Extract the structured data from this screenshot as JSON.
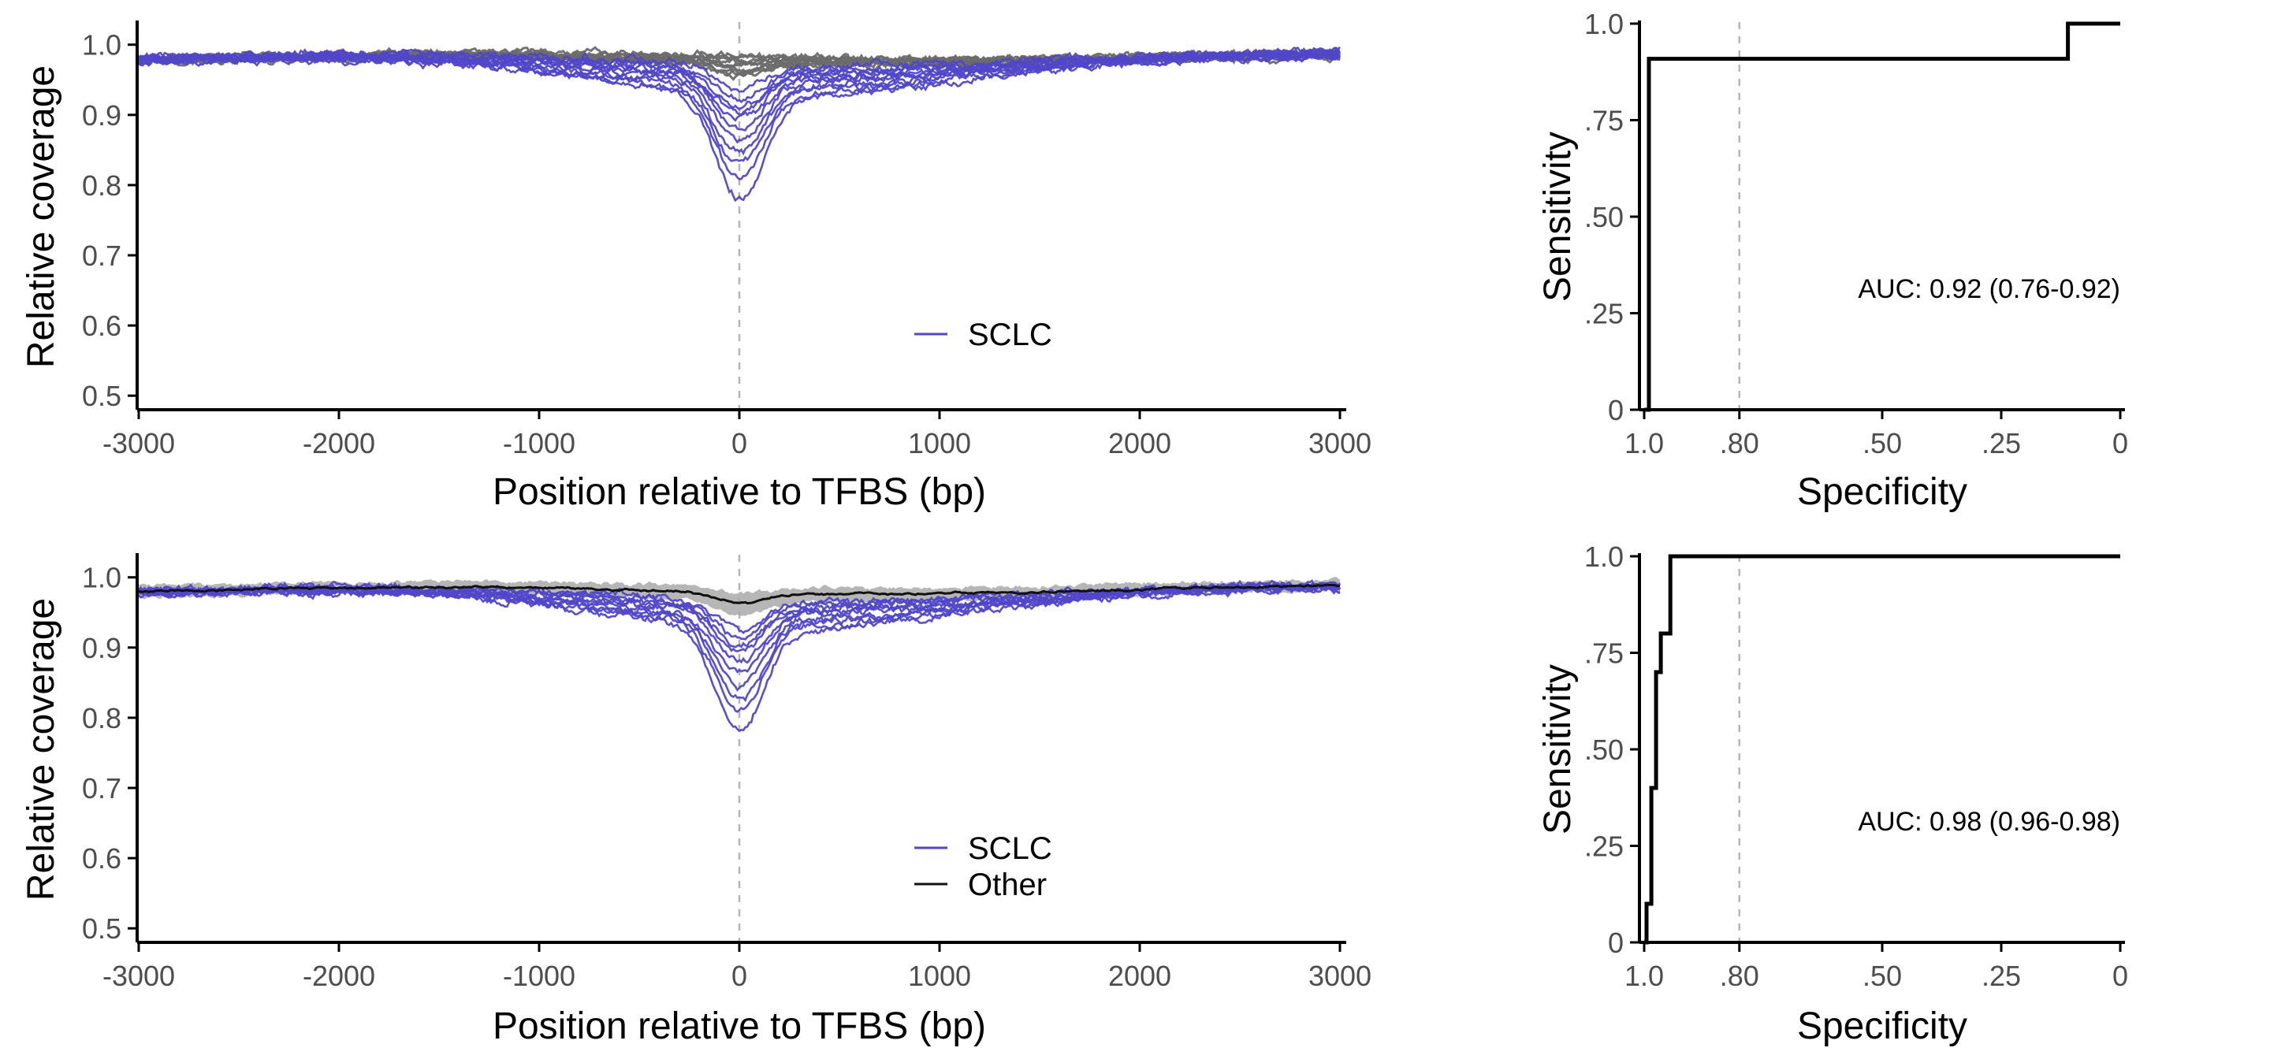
{
  "colors": {
    "sclc": "#5147c9",
    "other_band": "#a9a9a9",
    "other_lines": "#6b6b6b",
    "other_mean": "#111111",
    "axis": "#000000",
    "refline": "#b5b5b5"
  },
  "chart_data": [
    {
      "id": "coverage-top",
      "type": "line",
      "xlabel": "Position relative to TFBS (bp)",
      "ylabel": "Relative coverage",
      "xlim": [
        -3000,
        3000
      ],
      "ylim": [
        0.48,
        1.03
      ],
      "xticks": [
        -3000,
        -2000,
        -1000,
        0,
        1000,
        2000,
        3000
      ],
      "xtick_labels": [
        "-3000",
        "-2000",
        "-1000",
        "0",
        "1000",
        "2000",
        "3000"
      ],
      "yticks": [
        0.5,
        0.6,
        0.7,
        0.8,
        0.9,
        1.0
      ],
      "ytick_labels": [
        "0.5",
        "0.6",
        "0.7",
        "0.8",
        "0.9",
        "1.0"
      ],
      "vline_x": 0,
      "legend": [
        {
          "label": "SCLC",
          "color": "sclc"
        }
      ],
      "legend_position": "bottom-center",
      "other_display": "lines",
      "series": [
        {
          "group": "Other",
          "center_min": 0.985,
          "baseline": 0.985
        },
        {
          "group": "Other",
          "center_min": 0.982,
          "baseline": 0.983
        },
        {
          "group": "Other",
          "center_min": 0.978,
          "baseline": 0.984
        },
        {
          "group": "Other",
          "center_min": 0.975,
          "baseline": 0.981
        },
        {
          "group": "Other",
          "center_min": 0.972,
          "baseline": 0.982
        },
        {
          "group": "Other",
          "center_min": 0.968,
          "baseline": 0.979
        },
        {
          "group": "Other",
          "center_min": 0.965,
          "baseline": 0.983
        },
        {
          "group": "Other",
          "center_min": 0.962,
          "baseline": 0.98
        },
        {
          "group": "Other",
          "center_min": 0.958,
          "baseline": 0.982
        },
        {
          "group": "Other",
          "center_min": 0.955,
          "baseline": 0.978
        },
        {
          "group": "SCLC",
          "center_min": 0.77,
          "baseline": 0.985
        },
        {
          "group": "SCLC",
          "center_min": 0.8,
          "baseline": 0.982
        },
        {
          "group": "SCLC",
          "center_min": 0.82,
          "baseline": 0.984
        },
        {
          "group": "SCLC",
          "center_min": 0.84,
          "baseline": 0.98
        },
        {
          "group": "SCLC",
          "center_min": 0.86,
          "baseline": 0.983
        },
        {
          "group": "SCLC",
          "center_min": 0.875,
          "baseline": 0.981
        },
        {
          "group": "SCLC",
          "center_min": 0.89,
          "baseline": 0.986
        },
        {
          "group": "SCLC",
          "center_min": 0.9,
          "baseline": 0.979
        },
        {
          "group": "SCLC",
          "center_min": 0.91,
          "baseline": 0.984
        },
        {
          "group": "SCLC",
          "center_min": 0.92,
          "baseline": 0.982
        },
        {
          "group": "SCLC",
          "center_min": 0.935,
          "baseline": 0.985
        }
      ]
    },
    {
      "id": "roc-top",
      "type": "line",
      "xlabel": "Specificity",
      "ylabel": "Sensitivity",
      "xlim": [
        1.0,
        0
      ],
      "ylim": [
        0,
        1.0
      ],
      "xticks": [
        1.0,
        0.8,
        0.5,
        0.25,
        0
      ],
      "xtick_labels": [
        "1.0",
        ".80",
        ".50",
        ".25",
        "0"
      ],
      "yticks": [
        0,
        0.25,
        0.5,
        0.75,
        1.0
      ],
      "ytick_labels": [
        "0",
        ".25",
        ".50",
        ".75",
        "1.0"
      ],
      "vline_x": 0.8,
      "annotation": "AUC: 0.92 (0.76-0.92)",
      "specificity": [
        1.0,
        0.99,
        0.99,
        0.11,
        0.11,
        0
      ],
      "sensitivity": [
        0,
        0,
        0.909,
        0.909,
        1.0,
        1.0
      ]
    },
    {
      "id": "coverage-bottom",
      "type": "line",
      "xlabel": "Position relative to TFBS (bp)",
      "ylabel": "Relative coverage",
      "xlim": [
        -3000,
        3000
      ],
      "ylim": [
        0.48,
        1.03
      ],
      "xticks": [
        -3000,
        -2000,
        -1000,
        0,
        1000,
        2000,
        3000
      ],
      "xtick_labels": [
        "-3000",
        "-2000",
        "-1000",
        "0",
        "1000",
        "2000",
        "3000"
      ],
      "yticks": [
        0.5,
        0.6,
        0.7,
        0.8,
        0.9,
        1.0
      ],
      "ytick_labels": [
        "0.5",
        "0.6",
        "0.7",
        "0.8",
        "0.9",
        "1.0"
      ],
      "vline_x": 0,
      "legend": [
        {
          "label": "SCLC",
          "color": "sclc"
        },
        {
          "label": "Other",
          "color": "other_mean"
        }
      ],
      "legend_position": "bottom-center",
      "other_display": "band",
      "other_mean": {
        "center_min": 0.963,
        "baseline": 0.984
      },
      "other_band": {
        "lower_center": 0.945,
        "upper_center": 0.975,
        "lower_base": 0.976,
        "upper_base": 0.992
      },
      "series": [
        {
          "group": "SCLC",
          "center_min": 0.77,
          "baseline": 0.985
        },
        {
          "group": "SCLC",
          "center_min": 0.8,
          "baseline": 0.982
        },
        {
          "group": "SCLC",
          "center_min": 0.82,
          "baseline": 0.984
        },
        {
          "group": "SCLC",
          "center_min": 0.84,
          "baseline": 0.98
        },
        {
          "group": "SCLC",
          "center_min": 0.86,
          "baseline": 0.983
        },
        {
          "group": "SCLC",
          "center_min": 0.875,
          "baseline": 0.981
        },
        {
          "group": "SCLC",
          "center_min": 0.89,
          "baseline": 0.986
        },
        {
          "group": "SCLC",
          "center_min": 0.9,
          "baseline": 0.979
        },
        {
          "group": "SCLC",
          "center_min": 0.91,
          "baseline": 0.984
        },
        {
          "group": "SCLC",
          "center_min": 0.925,
          "baseline": 0.982
        }
      ]
    },
    {
      "id": "roc-bottom",
      "type": "line",
      "xlabel": "Specificity",
      "ylabel": "Sensitivity",
      "xlim": [
        1.0,
        0
      ],
      "ylim": [
        0,
        1.0
      ],
      "xticks": [
        1.0,
        0.8,
        0.5,
        0.25,
        0
      ],
      "xtick_labels": [
        "1.0",
        ".80",
        ".50",
        ".25",
        "0"
      ],
      "yticks": [
        0,
        0.25,
        0.5,
        0.75,
        1.0
      ],
      "ytick_labels": [
        "0",
        ".25",
        ".50",
        ".75",
        "1.0"
      ],
      "vline_x": 0.8,
      "annotation": "AUC: 0.98 (0.96-0.98)",
      "specificity": [
        1.0,
        0.995,
        0.995,
        0.985,
        0.985,
        0.975,
        0.975,
        0.965,
        0.965,
        0.945,
        0.945,
        0
      ],
      "sensitivity": [
        0,
        0,
        0.1,
        0.1,
        0.4,
        0.4,
        0.7,
        0.7,
        0.8,
        0.8,
        1.0,
        1.0
      ]
    }
  ]
}
